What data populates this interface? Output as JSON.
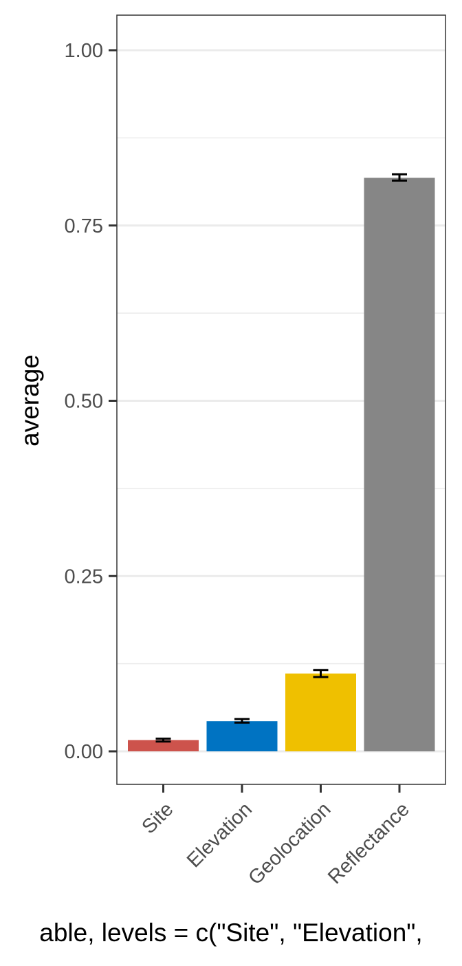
{
  "chart_data": {
    "type": "bar",
    "categories": [
      "Site",
      "Elevation",
      "Geolocation",
      "Reflectance"
    ],
    "values": [
      0.016,
      0.043,
      0.111,
      0.818
    ],
    "error_low": [
      0.014,
      0.041,
      0.106,
      0.814
    ],
    "error_high": [
      0.018,
      0.046,
      0.116,
      0.823
    ],
    "colors": [
      "#CD534C",
      "#0073C2",
      "#EFC000",
      "#868686"
    ],
    "ylabel": "average",
    "xlabel": "able, levels = c(\"Site\", \"Elevation\",",
    "ylim": [
      -0.047,
      1.047
    ],
    "yticks": [
      0.0,
      0.25,
      0.5,
      0.75,
      1.0
    ],
    "ytick_labels": [
      "0.00",
      "0.25",
      "0.50",
      "0.75",
      "1.00"
    ],
    "grid": true,
    "legend": "none"
  }
}
